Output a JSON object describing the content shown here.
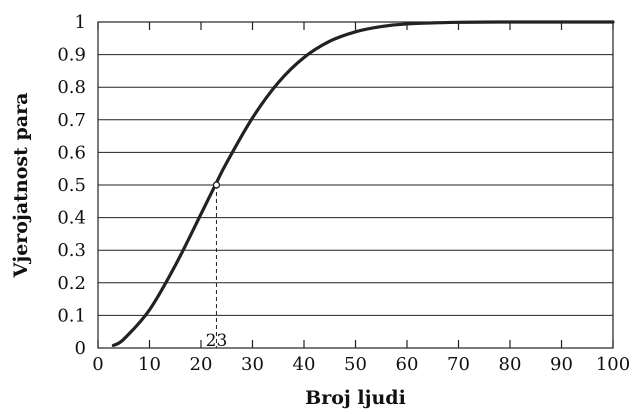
{
  "chart_data": {
    "type": "line",
    "title": "",
    "xlabel": "Broj ljudi",
    "ylabel": "Vjerojatnost para",
    "xlim": [
      0,
      100
    ],
    "ylim": [
      0,
      1
    ],
    "xticks": [
      "0",
      "10",
      "20",
      "30",
      "40",
      "50",
      "60",
      "70",
      "80",
      "90",
      "100"
    ],
    "yticks": [
      "0",
      "0.1",
      "0.2",
      "0.3",
      "0.4",
      "0.5",
      "0.6",
      "0.7",
      "0.8",
      "0.9",
      "1"
    ],
    "grid": true,
    "series": [
      {
        "x": [
          3,
          5,
          10,
          15,
          20,
          23,
          25,
          30,
          35,
          40,
          45,
          50,
          55,
          60,
          70,
          80,
          90,
          100
        ],
        "y": [
          0.008,
          0.027,
          0.117,
          0.253,
          0.411,
          0.507,
          0.569,
          0.706,
          0.814,
          0.891,
          0.941,
          0.97,
          0.986,
          0.994,
          0.999,
          1.0,
          1.0,
          1.0
        ]
      }
    ],
    "annotation": {
      "x": 23,
      "y": 0.5,
      "label": "23"
    },
    "colors": {
      "line": "#222222",
      "grid": "#222222",
      "guide": "#222222"
    }
  }
}
